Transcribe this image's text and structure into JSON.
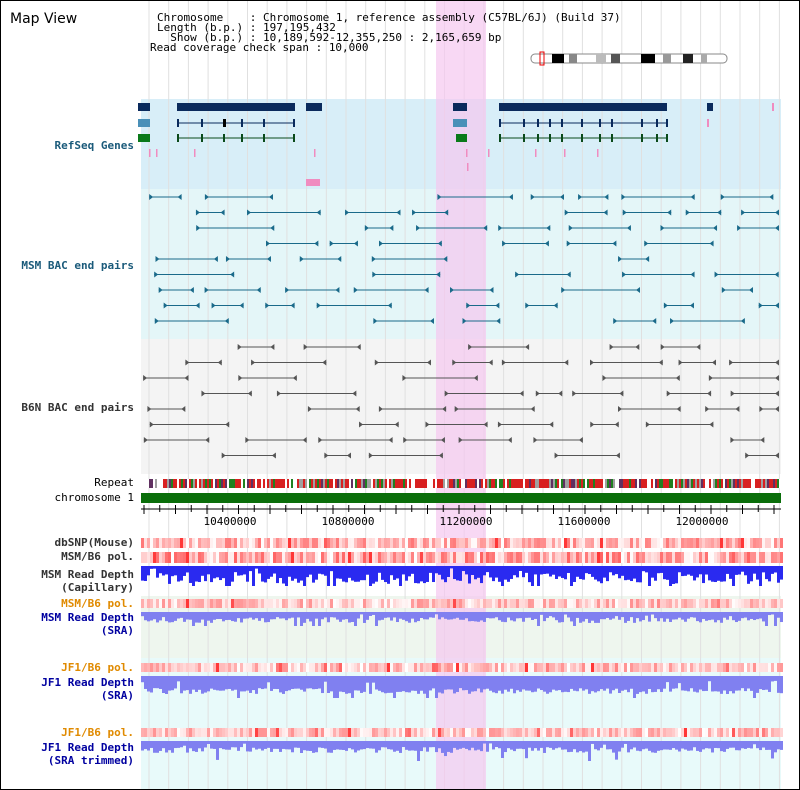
{
  "title": "Map View",
  "info": {
    "chromosome_key": "Chromosome    : ",
    "chromosome": "Chromosome 1, reference assembly (C57BL/6J) (Build 37)",
    "length_key": "Length (b.p.) : ",
    "length": "197,195,432",
    "show_key": "  Show (b.p.) : ",
    "show": "10,189,592-12,355,250 : 2,165,659 bp",
    "coverage_key": "Read coverage check span : ",
    "coverage": "10,000"
  },
  "tracks": {
    "refseq": "RefSeq Genes",
    "msm_bac": "MSM BAC end pairs",
    "b6n_bac": "B6N BAC end pairs",
    "repeat": "Repeat",
    "chromosome": "chromosome 1",
    "dbsnp": "dbSNP(Mouse)",
    "msm_b6_pol": "MSM/B6 pol.",
    "msm_depth_cap": "MSM Read Depth",
    "msm_depth_cap_sub": "(Capillary)",
    "msm_b6_pol2": "MSM/B6 pol.",
    "msm_depth_sra": "MSM Read Depth",
    "msm_depth_sra_sub": "(SRA)",
    "jf1_b6_pol": "JF1/B6 pol.",
    "jf1_depth_sra": "JF1 Read Depth",
    "jf1_depth_sra_sub": "(SRA)",
    "jf1_b6_pol2": "JF1/B6 pol.",
    "jf1_depth_trim": "JF1 Read Depth",
    "jf1_depth_trim_sub": "(SRA trimmed)"
  },
  "axis": {
    "ticks": [
      "10400000",
      "10800000",
      "11200000",
      "11600000",
      "12000000"
    ]
  },
  "colors": {
    "gene_dark": "#0a2a5c",
    "gene_mid": "#4a90b8",
    "gene_green": "#0a7a1a",
    "msm_pair": "#1a6a8a",
    "b6n_pair": "#555555",
    "chromosome_bar": "#0a6e0a",
    "highlight": "#f5c8f0",
    "depth_blue": "#2a2af0",
    "depth_light": "#8080f0",
    "label_orange": "#e08a00",
    "label_blue": "#0000a0",
    "label_teal": "#1a5a7a"
  }
}
